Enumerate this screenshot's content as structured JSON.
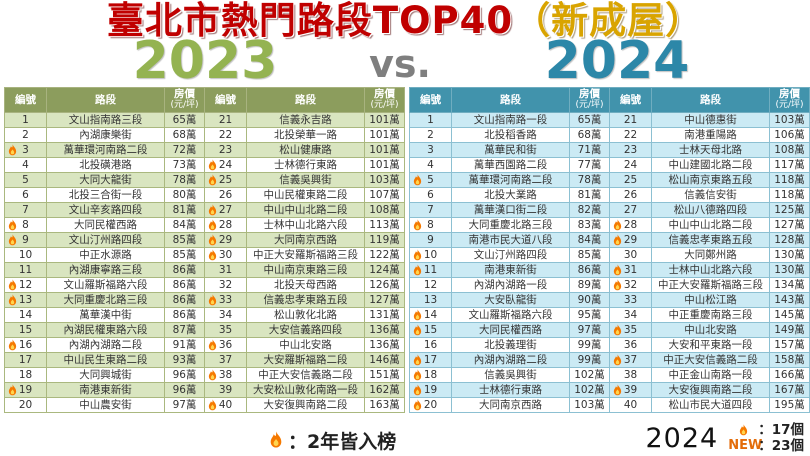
{
  "title": {
    "main": "臺北市熱門路段TOP40",
    "suffix": "（新成屋）"
  },
  "versus": {
    "left_year": "2023",
    "vs": "vs.",
    "right_year": "2024"
  },
  "headers": {
    "rank": "編號",
    "road": "路段",
    "price1": "房價",
    "price2": "(元/坪)"
  },
  "icons": {
    "fire": "flame-icon"
  },
  "colors": {
    "title_red": "#c00000",
    "title_gold": "#d9a400",
    "year_2023_green": "#94b351",
    "vs_gray": "#7f7f7f",
    "year_2024_teal": "#2c87a8",
    "table_2023_header": "#8c9d5d",
    "table_2023_row": "#d9e5c0",
    "table_2024_header": "#4193ac",
    "table_2024_row": "#cbeaf4",
    "new_orange": "#e36c0a",
    "fire_orange": "#f57900",
    "fire_yellow": "#ffd54f"
  },
  "footer": {
    "legend_text": "：2年皆入榜",
    "stats_year": "2024",
    "fire_count": "：17個",
    "new_label": "NEW",
    "new_count": "：23個"
  },
  "chart_data": [
    {
      "type": "table",
      "title": "2023",
      "columns": [
        "編號",
        "路段",
        "房價(元/坪)"
      ],
      "legend_note": "fire = 2年皆入榜",
      "rows": [
        {
          "rank": 1,
          "road": "文山指南路三段",
          "price": "65萬",
          "fire": false
        },
        {
          "rank": 2,
          "road": "內湖康樂街",
          "price": "68萬",
          "fire": false
        },
        {
          "rank": 3,
          "road": "萬華環河南路二段",
          "price": "72萬",
          "fire": true
        },
        {
          "rank": 4,
          "road": "北投磺港路",
          "price": "73萬",
          "fire": false
        },
        {
          "rank": 5,
          "road": "大同大龍街",
          "price": "78萬",
          "fire": false
        },
        {
          "rank": 6,
          "road": "北投三合街一段",
          "price": "80萬",
          "fire": false
        },
        {
          "rank": 7,
          "road": "文山辛亥路四段",
          "price": "81萬",
          "fire": false
        },
        {
          "rank": 8,
          "road": "大同民權西路",
          "price": "84萬",
          "fire": true
        },
        {
          "rank": 9,
          "road": "文山汀州路四段",
          "price": "85萬",
          "fire": true
        },
        {
          "rank": 10,
          "road": "中正水源路",
          "price": "85萬",
          "fire": false
        },
        {
          "rank": 11,
          "road": "內湖康寧路三段",
          "price": "86萬",
          "fire": false
        },
        {
          "rank": 12,
          "road": "文山羅斯福路六段",
          "price": "86萬",
          "fire": true
        },
        {
          "rank": 13,
          "road": "大同重慶北路三段",
          "price": "86萬",
          "fire": true
        },
        {
          "rank": 14,
          "road": "萬華漢中街",
          "price": "86萬",
          "fire": false
        },
        {
          "rank": 15,
          "road": "內湖民權東路六段",
          "price": "87萬",
          "fire": false
        },
        {
          "rank": 16,
          "road": "內湖內湖路二段",
          "price": "91萬",
          "fire": true
        },
        {
          "rank": 17,
          "road": "中山民生東路二段",
          "price": "93萬",
          "fire": false
        },
        {
          "rank": 18,
          "road": "大同興城街",
          "price": "96萬",
          "fire": false
        },
        {
          "rank": 19,
          "road": "南港東新街",
          "price": "96萬",
          "fire": true
        },
        {
          "rank": 20,
          "road": "中山農安街",
          "price": "97萬",
          "fire": false
        },
        {
          "rank": 21,
          "road": "信義永吉路",
          "price": "101萬",
          "fire": false
        },
        {
          "rank": 22,
          "road": "北投榮華一路",
          "price": "101萬",
          "fire": false
        },
        {
          "rank": 23,
          "road": "松山健康路",
          "price": "101萬",
          "fire": false
        },
        {
          "rank": 24,
          "road": "士林德行東路",
          "price": "101萬",
          "fire": true
        },
        {
          "rank": 25,
          "road": "信義吳興街",
          "price": "103萬",
          "fire": true
        },
        {
          "rank": 26,
          "road": "中山民權東路二段",
          "price": "107萬",
          "fire": false
        },
        {
          "rank": 27,
          "road": "中山中山北路二段",
          "price": "108萬",
          "fire": true
        },
        {
          "rank": 28,
          "road": "士林中山北路六段",
          "price": "113萬",
          "fire": true
        },
        {
          "rank": 29,
          "road": "大同南京西路",
          "price": "119萬",
          "fire": true
        },
        {
          "rank": 30,
          "road": "中正大安羅斯福路三段",
          "price": "122萬",
          "fire": true
        },
        {
          "rank": 31,
          "road": "中山南京東路三段",
          "price": "124萬",
          "fire": false
        },
        {
          "rank": 32,
          "road": "北投天母西路",
          "price": "126萬",
          "fire": false
        },
        {
          "rank": 33,
          "road": "信義忠孝東路五段",
          "price": "127萬",
          "fire": true
        },
        {
          "rank": 34,
          "road": "松山敦化北路",
          "price": "131萬",
          "fire": false
        },
        {
          "rank": 35,
          "road": "大安信義路四段",
          "price": "136萬",
          "fire": false
        },
        {
          "rank": 36,
          "road": "中山北安路",
          "price": "136萬",
          "fire": true
        },
        {
          "rank": 37,
          "road": "大安羅斯福路二段",
          "price": "146萬",
          "fire": false
        },
        {
          "rank": 38,
          "road": "中正大安信義路二段",
          "price": "151萬",
          "fire": true
        },
        {
          "rank": 39,
          "road": "大安松山敦化南路一段",
          "price": "162萬",
          "fire": false
        },
        {
          "rank": 40,
          "road": "大安復興南路二段",
          "price": "163萬",
          "fire": true
        }
      ]
    },
    {
      "type": "table",
      "title": "2024",
      "columns": [
        "編號",
        "路段",
        "房價(元/坪)"
      ],
      "legend_note": "fire = 2年皆入榜",
      "rows": [
        {
          "rank": 1,
          "road": "文山指南路一段",
          "price": "65萬",
          "fire": false
        },
        {
          "rank": 2,
          "road": "北投稻香路",
          "price": "68萬",
          "fire": false
        },
        {
          "rank": 3,
          "road": "萬華民和街",
          "price": "71萬",
          "fire": false
        },
        {
          "rank": 4,
          "road": "萬華西園路二段",
          "price": "77萬",
          "fire": false
        },
        {
          "rank": 5,
          "road": "萬華環河南路二段",
          "price": "78萬",
          "fire": true
        },
        {
          "rank": 6,
          "road": "北投大業路",
          "price": "81萬",
          "fire": false
        },
        {
          "rank": 7,
          "road": "萬華漢口街二段",
          "price": "82萬",
          "fire": false
        },
        {
          "rank": 8,
          "road": "大同重慶北路三段",
          "price": "83萬",
          "fire": true
        },
        {
          "rank": 9,
          "road": "南港市民大道八段",
          "price": "84萬",
          "fire": false
        },
        {
          "rank": 10,
          "road": "文山汀州路四段",
          "price": "85萬",
          "fire": true
        },
        {
          "rank": 11,
          "road": "南港東新街",
          "price": "86萬",
          "fire": true
        },
        {
          "rank": 12,
          "road": "內湖內湖路一段",
          "price": "89萬",
          "fire": false
        },
        {
          "rank": 13,
          "road": "大安臥龍街",
          "price": "90萬",
          "fire": false
        },
        {
          "rank": 14,
          "road": "文山羅斯福路六段",
          "price": "95萬",
          "fire": true
        },
        {
          "rank": 15,
          "road": "大同民權西路",
          "price": "97萬",
          "fire": true
        },
        {
          "rank": 16,
          "road": "北投義理街",
          "price": "99萬",
          "fire": false
        },
        {
          "rank": 17,
          "road": "內湖內湖路二段",
          "price": "99萬",
          "fire": true
        },
        {
          "rank": 18,
          "road": "信義吳興街",
          "price": "102萬",
          "fire": true
        },
        {
          "rank": 19,
          "road": "士林德行東路",
          "price": "102萬",
          "fire": true
        },
        {
          "rank": 20,
          "road": "大同南京西路",
          "price": "103萬",
          "fire": true
        },
        {
          "rank": 21,
          "road": "中山德惠街",
          "price": "103萬",
          "fire": false
        },
        {
          "rank": 22,
          "road": "南港重陽路",
          "price": "106萬",
          "fire": false
        },
        {
          "rank": 23,
          "road": "士林天母北路",
          "price": "108萬",
          "fire": false
        },
        {
          "rank": 24,
          "road": "中山建國北路二段",
          "price": "117萬",
          "fire": false
        },
        {
          "rank": 25,
          "road": "松山南京東路五段",
          "price": "118萬",
          "fire": false
        },
        {
          "rank": 26,
          "road": "信義信安街",
          "price": "118萬",
          "fire": false
        },
        {
          "rank": 27,
          "road": "松山八德路四段",
          "price": "125萬",
          "fire": false
        },
        {
          "rank": 28,
          "road": "中山中山北路二段",
          "price": "127萬",
          "fire": true
        },
        {
          "rank": 29,
          "road": "信義忠孝東路五段",
          "price": "128萬",
          "fire": true
        },
        {
          "rank": 30,
          "road": "大同鄭州路",
          "price": "130萬",
          "fire": false
        },
        {
          "rank": 31,
          "road": "士林中山北路六段",
          "price": "130萬",
          "fire": true
        },
        {
          "rank": 32,
          "road": "中正大安羅斯福路三段",
          "price": "134萬",
          "fire": true
        },
        {
          "rank": 33,
          "road": "中山松江路",
          "price": "143萬",
          "fire": false
        },
        {
          "rank": 34,
          "road": "中正重慶南路三段",
          "price": "145萬",
          "fire": false
        },
        {
          "rank": 35,
          "road": "中山北安路",
          "price": "149萬",
          "fire": true
        },
        {
          "rank": 36,
          "road": "大安和平東路一段",
          "price": "157萬",
          "fire": false
        },
        {
          "rank": 37,
          "road": "中正大安信義路二段",
          "price": "158萬",
          "fire": true
        },
        {
          "rank": 38,
          "road": "中正金山南路一段",
          "price": "166萬",
          "fire": false
        },
        {
          "rank": 39,
          "road": "大安復興南路二段",
          "price": "167萬",
          "fire": true
        },
        {
          "rank": 40,
          "road": "松山市民大道四段",
          "price": "195萬",
          "fire": false
        }
      ]
    }
  ]
}
